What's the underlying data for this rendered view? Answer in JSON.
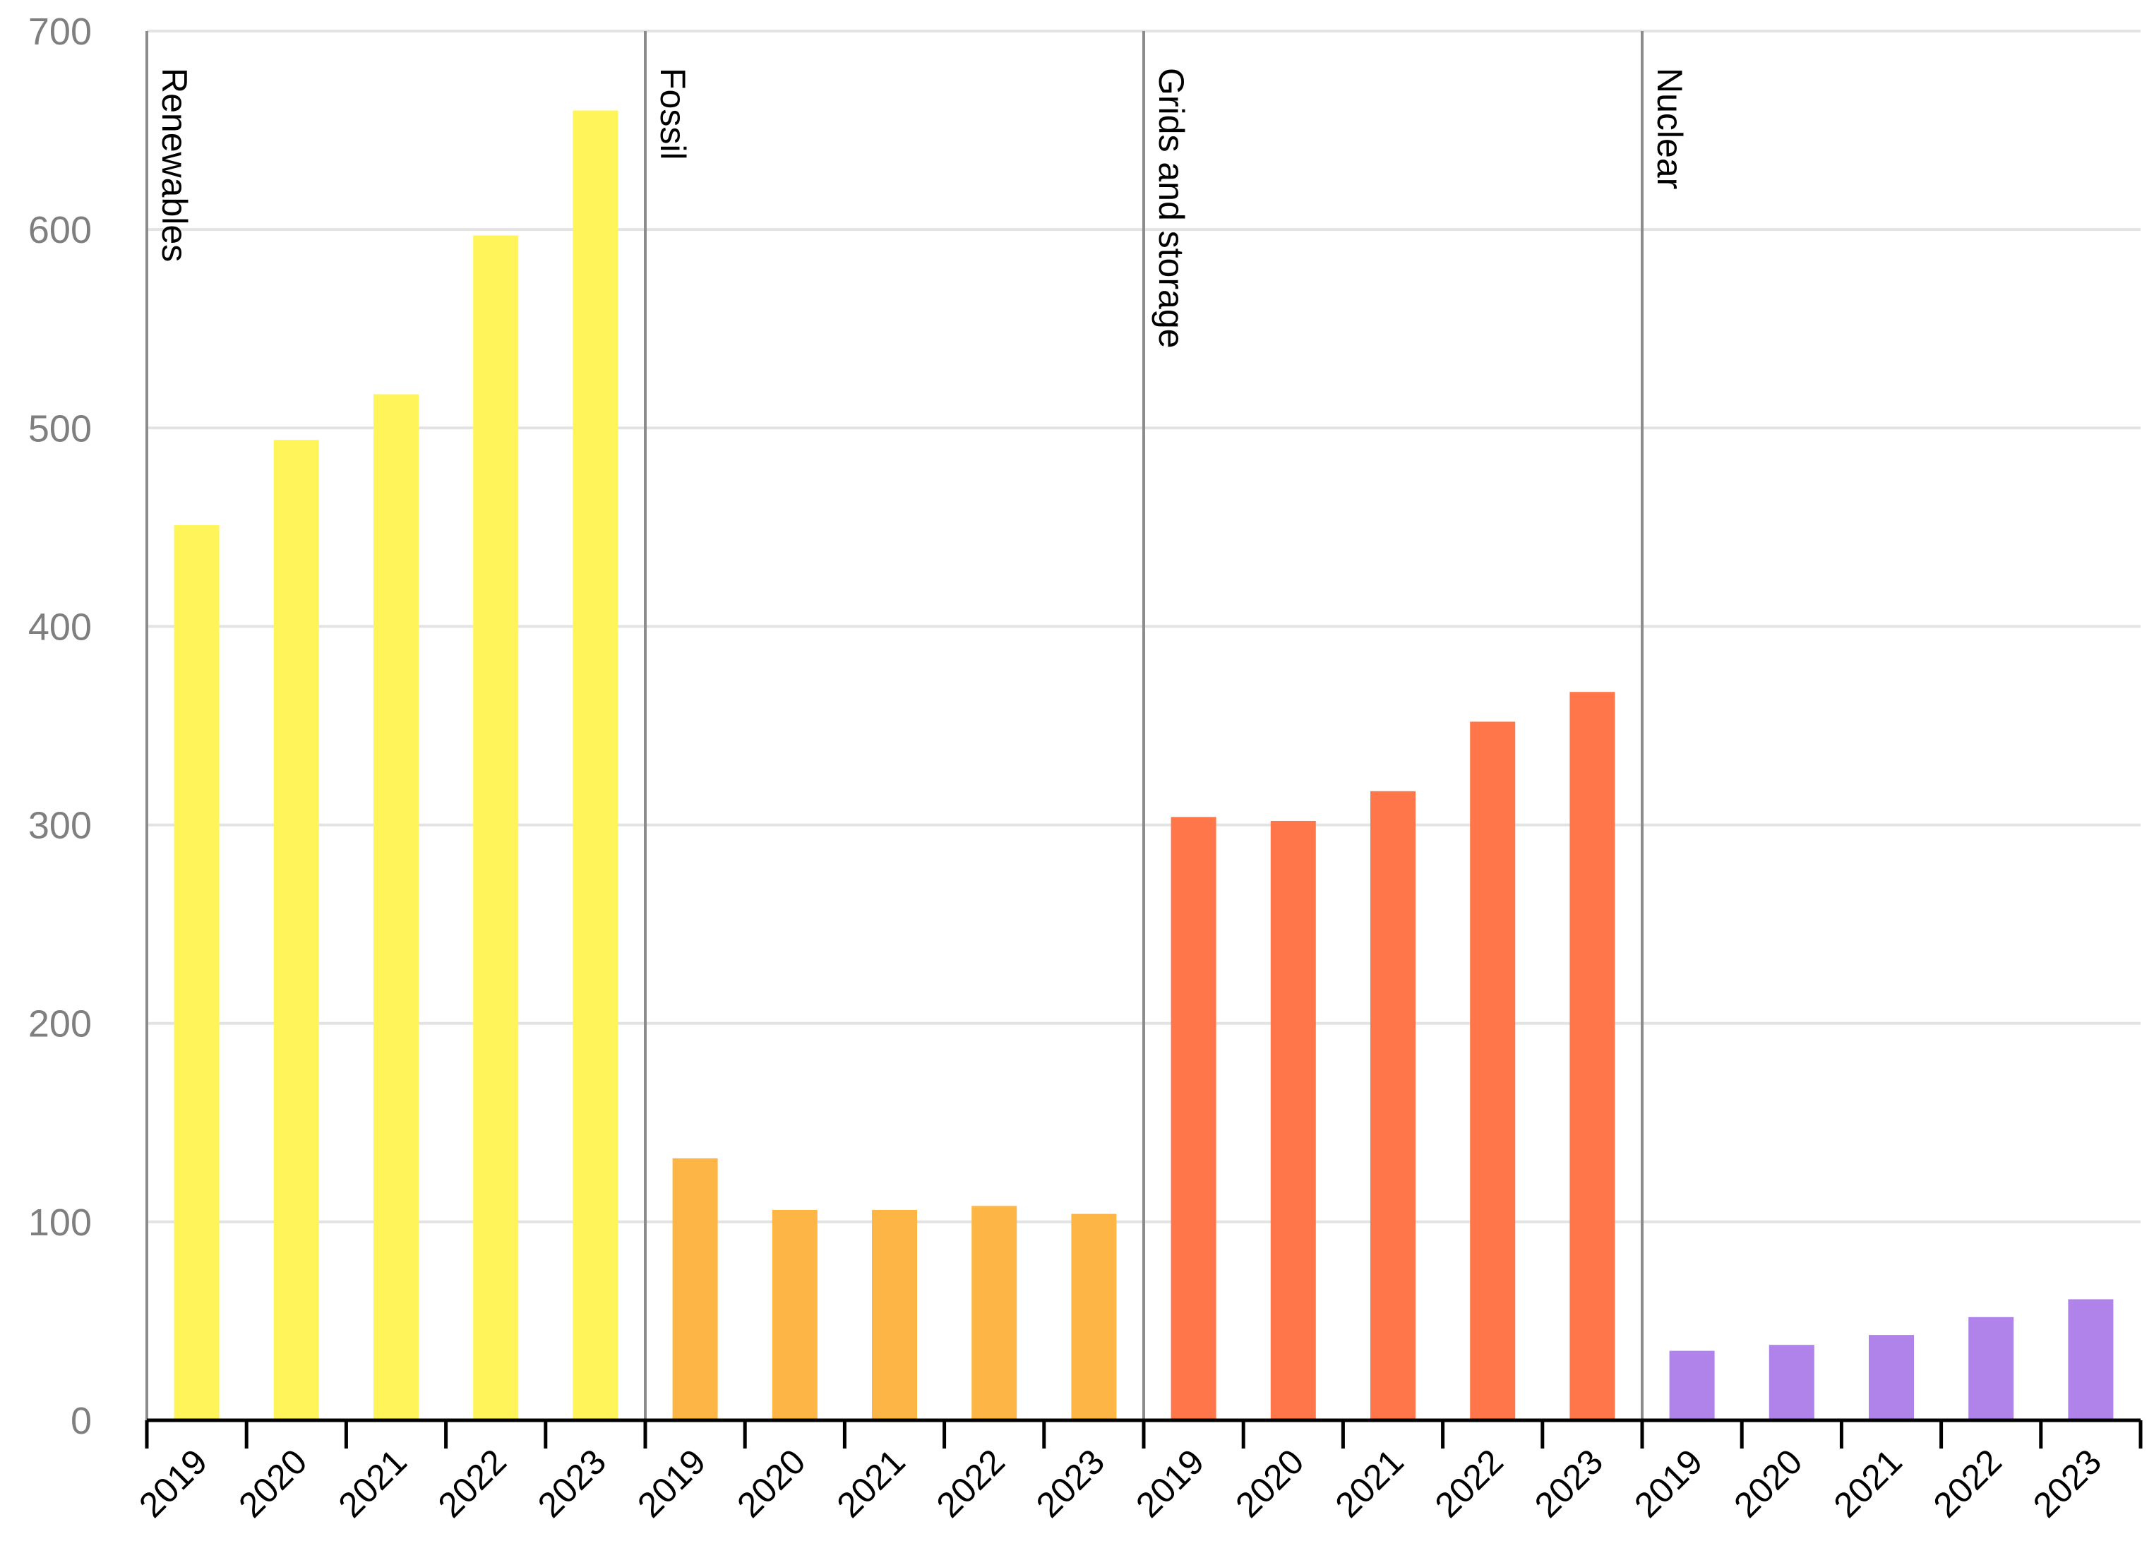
{
  "chart_data": {
    "type": "bar",
    "title": "",
    "xlabel": "",
    "ylabel": "",
    "ylim": [
      0,
      700
    ],
    "yticks": [
      0,
      100,
      200,
      300,
      400,
      500,
      600,
      700
    ],
    "grid": true,
    "groups": [
      {
        "name": "Renewables",
        "color": "#fff55a",
        "categories": [
          "2019",
          "2020",
          "2021",
          "2022",
          "2023"
        ],
        "values": [
          451,
          494,
          517,
          597,
          660
        ]
      },
      {
        "name": "Fossil",
        "color": "#fdb645",
        "categories": [
          "2019",
          "2020",
          "2021",
          "2022",
          "2023"
        ],
        "values": [
          132,
          106,
          106,
          108,
          104
        ]
      },
      {
        "name": "Grids and storage",
        "color": "#ff764b",
        "categories": [
          "2019",
          "2020",
          "2021",
          "2022",
          "2023"
        ],
        "values": [
          304,
          302,
          317,
          352,
          367
        ]
      },
      {
        "name": "Nuclear",
        "color": "#b083ea",
        "categories": [
          "2019",
          "2020",
          "2021",
          "2022",
          "2023"
        ],
        "values": [
          35,
          38,
          43,
          52,
          61
        ]
      }
    ]
  }
}
